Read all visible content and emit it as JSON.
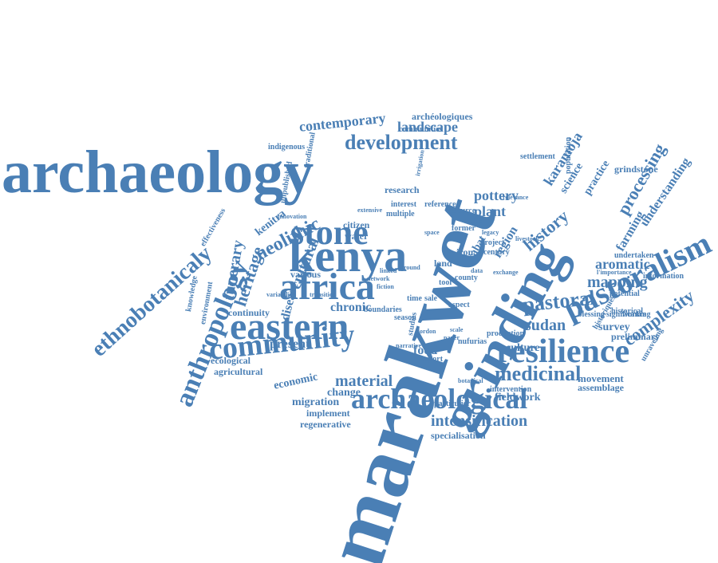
{
  "colors": {
    "word": "#4a7fb5",
    "background": "#ffffff"
  },
  "words": [
    "archaeology",
    "marakwet",
    "grinding",
    "kenya",
    "africa",
    "eastern",
    "resilience",
    "community",
    "pastoralism",
    "archaeological",
    "anthropology",
    "ethnobotanicaly",
    "stone",
    "development",
    "pastoral",
    "medicinal",
    "landscape",
    "contemporary",
    "processing",
    "neolithic",
    "heritage",
    "cultural",
    "funerary",
    "mapping",
    "complexity",
    "aromatic",
    "intensification",
    "sudan",
    "material",
    "history",
    "pottery",
    "plant",
    "karamoja",
    "understanding",
    "farming",
    "region",
    "food",
    "chronic",
    "disease",
    "present",
    "survey",
    "kenitra",
    "economic",
    "migration",
    "change",
    "fieldwork",
    "culture",
    "specialisation",
    "regenerative",
    "implement",
    "movement",
    "assemblage",
    "ecological",
    "agricultural",
    "continuity",
    "various",
    "citizen",
    "water",
    "research",
    "indigenous",
    "grindstone",
    "science",
    "settlement",
    "practice",
    "population",
    "iron",
    "land",
    "undertaken",
    "potential",
    "preliminary",
    "unraveling",
    "historical",
    "report",
    "communities",
    "archéologiques",
    "traditional",
    "environment",
    "knowledge",
    "effectiveness",
    "unpublished",
    "boundaries",
    "season",
    "sale",
    "aspect",
    "particulier",
    "intervention",
    "botanical",
    "production",
    "blessing",
    "significance",
    "working",
    "information",
    "rabat",
    "tool",
    "project",
    "century",
    "county",
    "time",
    "multiple",
    "interest",
    "resource",
    "former",
    "reference",
    "irrigation",
    "relevance",
    "innovation",
    "variability",
    "studies",
    "narrative",
    "gordon",
    "nufurias",
    "data",
    "historiques",
    "l'importance",
    "scale",
    "paper",
    "extensive",
    "transition",
    "network",
    "linked",
    "exchange",
    "livestock",
    "ground",
    "value",
    "fiction",
    "legacy",
    "space"
  ]
}
